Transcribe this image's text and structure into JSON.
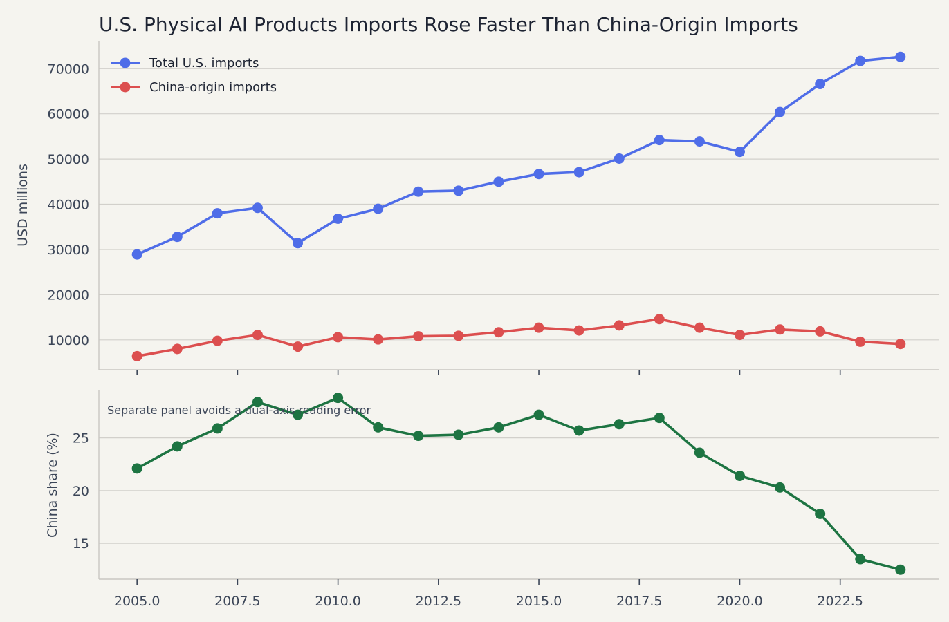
{
  "chart_data": [
    {
      "type": "line",
      "title": "U.S. Physical AI Products Imports Rose Faster Than China-Origin Imports",
      "ylabel": "USD millions",
      "x": [
        2005,
        2006,
        2007,
        2008,
        2009,
        2010,
        2011,
        2012,
        2013,
        2014,
        2015,
        2016,
        2017,
        2018,
        2019,
        2020,
        2021,
        2022,
        2023,
        2024
      ],
      "xlim": [
        2004.05,
        2024.95
      ],
      "ylim": [
        3400,
        76000
      ],
      "yticks": [
        10000,
        20000,
        30000,
        40000,
        50000,
        60000,
        70000
      ],
      "yticklabels": [
        "10000",
        "20000",
        "30000",
        "40000",
        "50000",
        "60000",
        "70000"
      ],
      "grid": "horizontal",
      "legend_position": "top-left",
      "series": [
        {
          "name": "Total U.S. imports",
          "color": "#4f6de8",
          "values": [
            28900,
            32800,
            38000,
            39200,
            31400,
            36800,
            39000,
            42800,
            43000,
            45000,
            46700,
            47100,
            50100,
            54200,
            53900,
            51600,
            60400,
            66600,
            71700,
            72600
          ]
        },
        {
          "name": "China-origin imports",
          "color": "#dc4f4f",
          "values": [
            6400,
            8000,
            9800,
            11100,
            8500,
            10600,
            10100,
            10800,
            10900,
            11700,
            12700,
            12100,
            13200,
            14600,
            12700,
            11100,
            12300,
            11900,
            9600,
            9100
          ]
        }
      ]
    },
    {
      "type": "line",
      "ylabel": "China share (%)",
      "x": [
        2005,
        2006,
        2007,
        2008,
        2009,
        2010,
        2011,
        2012,
        2013,
        2014,
        2015,
        2016,
        2017,
        2018,
        2019,
        2020,
        2021,
        2022,
        2023,
        2024
      ],
      "xlim": [
        2004.05,
        2024.95
      ],
      "ylim": [
        11.6,
        29.5
      ],
      "yticks": [
        15,
        20,
        25
      ],
      "yticklabels": [
        "15",
        "20",
        "25"
      ],
      "xticks": [
        2005,
        2007.5,
        2010,
        2012.5,
        2015,
        2017.5,
        2020,
        2022.5
      ],
      "xticklabels": [
        "2005.0",
        "2007.5",
        "2010.0",
        "2012.5",
        "2015.0",
        "2017.5",
        "2020.0",
        "2022.5"
      ],
      "grid": "horizontal",
      "annotation": "Separate panel avoids a dual-axis reading error",
      "series": [
        {
          "color": "#1d7442",
          "values": [
            22.1,
            24.2,
            25.9,
            28.4,
            27.2,
            28.8,
            26.0,
            25.2,
            25.3,
            26.0,
            27.2,
            25.7,
            26.3,
            26.9,
            23.6,
            21.4,
            20.3,
            17.8,
            13.5,
            12.5
          ]
        }
      ]
    }
  ]
}
